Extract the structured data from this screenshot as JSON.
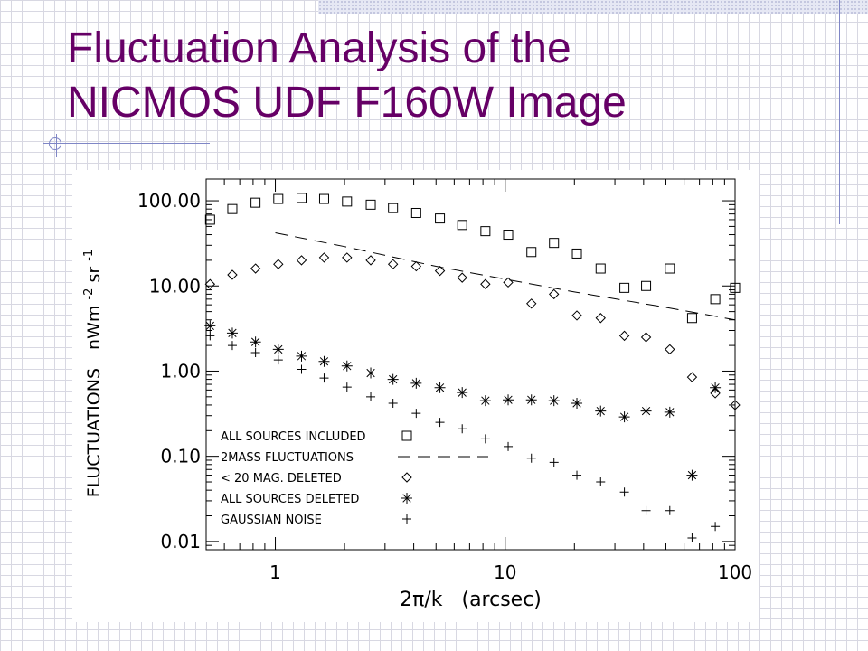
{
  "slide": {
    "title_line1": "Fluctuation Analysis of the",
    "title_line2": "NICMOS UDF F160W Image"
  },
  "chart_data": {
    "type": "scatter",
    "xlabel": "2π/k   (arcsec)",
    "ylabel_main": "FLUCTUATIONS",
    "ylabel_unit_parts": [
      "nWm",
      "-2",
      "sr",
      "-1"
    ],
    "x_log": true,
    "y_log": true,
    "xlim": [
      0.5,
      100
    ],
    "ylim": [
      0.008,
      180
    ],
    "x_ticks": [
      {
        "value": 1,
        "label": "1"
      },
      {
        "value": 10,
        "label": "10"
      },
      {
        "value": 100,
        "label": "100"
      }
    ],
    "y_ticks": [
      {
        "value": 0.01,
        "label": "0.01"
      },
      {
        "value": 0.1,
        "label": "0.10"
      },
      {
        "value": 1,
        "label": "1.00"
      },
      {
        "value": 10,
        "label": "10.00"
      },
      {
        "value": 100,
        "label": "100.00"
      }
    ],
    "grid": false,
    "legend_position": "bottom-left",
    "series": [
      {
        "name": "ALL SOURCES INCLUDED",
        "marker": "square",
        "x": [
          0.52,
          0.65,
          0.82,
          1.03,
          1.3,
          1.63,
          2.05,
          2.6,
          3.25,
          4.1,
          5.2,
          6.5,
          8.2,
          10.3,
          13,
          16.3,
          20.5,
          26,
          33,
          41,
          52,
          65,
          82,
          100
        ],
        "y": [
          60,
          80,
          95,
          105,
          108,
          105,
          98,
          90,
          82,
          72,
          62,
          52,
          44,
          40,
          25,
          32,
          24,
          16,
          9.5,
          10,
          16,
          4.2,
          7,
          9.5
        ]
      },
      {
        "name": "2MASS FLUCTUATIONS",
        "marker": "dashed-line",
        "x": [
          1.0,
          2.0,
          5.0,
          10,
          20,
          50,
          100
        ],
        "y": [
          42,
          29,
          17,
          12,
          8.5,
          5.6,
          4.0
        ]
      },
      {
        "name": "< 20 MAG. DELETED",
        "marker": "diamond",
        "x": [
          0.52,
          0.65,
          0.82,
          1.03,
          1.3,
          1.63,
          2.05,
          2.6,
          3.25,
          4.1,
          5.2,
          6.5,
          8.2,
          10.3,
          13,
          16.3,
          20.5,
          26,
          33,
          41,
          52,
          65,
          82,
          100
        ],
        "y": [
          10.5,
          13.5,
          16,
          18,
          20,
          21.5,
          21.5,
          20,
          18,
          17,
          15,
          12.5,
          10.5,
          11,
          6.2,
          8,
          4.5,
          4.2,
          2.6,
          2.5,
          1.8,
          0.85,
          0.55,
          0.4
        ]
      },
      {
        "name": "ALL SOURCES DELETED",
        "marker": "asterisk",
        "x": [
          0.52,
          0.65,
          0.82,
          1.03,
          1.3,
          1.63,
          2.05,
          2.6,
          3.25,
          4.1,
          5.2,
          6.5,
          8.2,
          10.3,
          13,
          16.3,
          20.5,
          26,
          33,
          41,
          52,
          65,
          82
        ],
        "y": [
          3.4,
          2.8,
          2.2,
          1.8,
          1.5,
          1.3,
          1.15,
          0.95,
          0.8,
          0.72,
          0.64,
          0.56,
          0.45,
          0.46,
          0.46,
          0.45,
          0.42,
          0.34,
          0.29,
          0.34,
          0.33,
          0.06,
          0.64
        ]
      },
      {
        "name": "GAUSSIAN NOISE",
        "marker": "plus",
        "x": [
          0.52,
          0.65,
          0.82,
          1.03,
          1.3,
          1.63,
          2.05,
          2.6,
          3.25,
          4.1,
          5.2,
          6.5,
          8.2,
          10.3,
          13,
          16.3,
          20.5,
          26,
          33,
          41,
          52,
          65,
          82
        ],
        "y": [
          2.6,
          2.0,
          1.65,
          1.35,
          1.05,
          0.83,
          0.65,
          0.5,
          0.42,
          0.32,
          0.25,
          0.21,
          0.16,
          0.13,
          0.095,
          0.085,
          0.06,
          0.05,
          0.038,
          0.023,
          0.023,
          0.011,
          0.015
        ]
      }
    ]
  }
}
